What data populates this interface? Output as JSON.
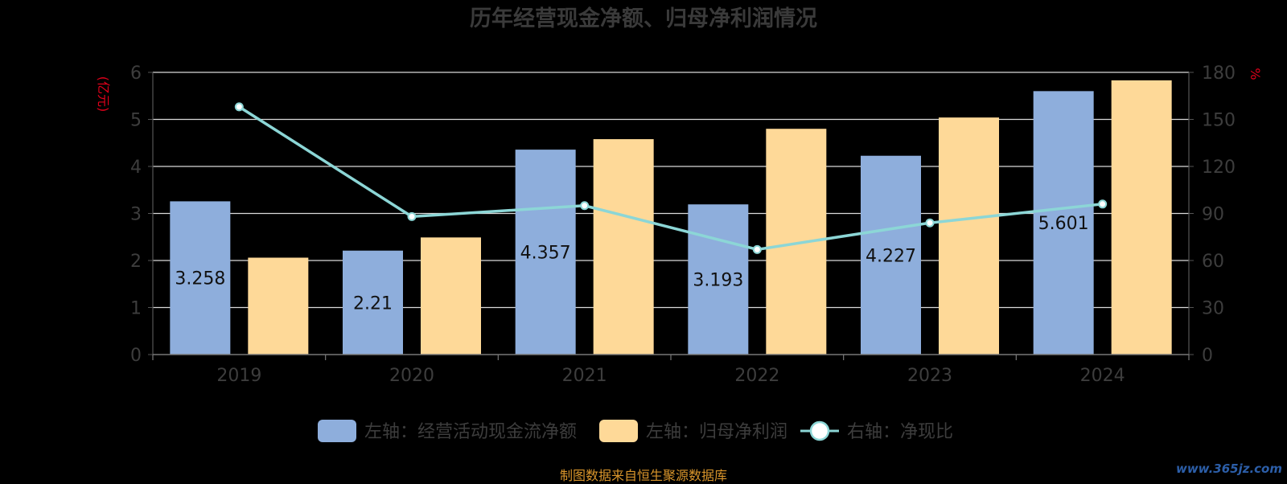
{
  "title": "历年经营现金净额、归母净利润情况",
  "left_unit": "(亿元)",
  "right_unit": "%",
  "source_text": "制图数据来自恒生聚源数据库",
  "watermark": "www.365jz.com",
  "chart_data": {
    "type": "bar",
    "title": "历年经营现金净额、归母净利润情况",
    "categories": [
      "2019",
      "2020",
      "2021",
      "2022",
      "2023",
      "2024"
    ],
    "left_axis": {
      "label": "(亿元)",
      "ylim": [
        0,
        6
      ],
      "ticks": [
        "0",
        "1",
        "2",
        "3",
        "4",
        "5",
        "6"
      ]
    },
    "right_axis": {
      "label": "%",
      "ylim": [
        0,
        180
      ],
      "ticks": [
        "0",
        "30",
        "60",
        "90",
        "120",
        "150",
        "180"
      ]
    },
    "series": [
      {
        "name": "左轴：经营活动现金流净额",
        "type": "bar",
        "axis": "left",
        "color": "#8eaedc",
        "values": [
          3.258,
          2.21,
          4.357,
          3.193,
          4.227,
          5.601
        ],
        "labels": [
          "3.258",
          "2.21",
          "4.357",
          "3.193",
          "4.227",
          "5.601"
        ]
      },
      {
        "name": "左轴：归母净利润",
        "type": "bar",
        "axis": "left",
        "color": "#fed998",
        "values": [
          2.06,
          2.49,
          4.58,
          4.8,
          5.04,
          5.83
        ]
      },
      {
        "name": "右轴：净现比",
        "type": "line",
        "axis": "right",
        "color": "#8cd6d6",
        "values": [
          158,
          88,
          95,
          67,
          84,
          96
        ]
      }
    ],
    "grid": true,
    "legend_position": "bottom"
  }
}
